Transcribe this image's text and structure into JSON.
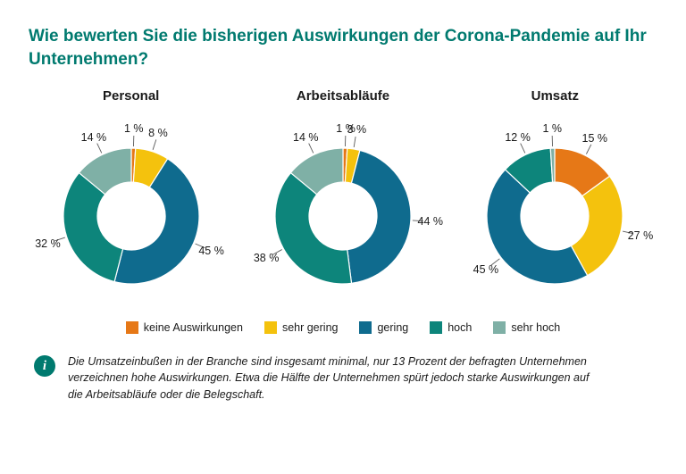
{
  "title": "Wie bewerten Sie die bisherigen Auswirkungen der Corona-Pandemie auf Ihr Unternehmen?",
  "chart": {
    "type": "donut",
    "background_color": "#ffffff",
    "title_color": "#007a6f",
    "title_fontsize": 19,
    "label_fontsize": 12.5,
    "chart_title_fontsize": 15,
    "inner_radius_ratio": 0.5,
    "start_angle_deg": 0,
    "series_colors": {
      "keine Auswirkungen": "#e67817",
      "sehr gering": "#f4c20d",
      "gering": "#0f6b8e",
      "hoch": "#0d857b",
      "sehr hoch": "#7fb0a6"
    },
    "panels": [
      {
        "title": "Personal",
        "slices": [
          {
            "label": "keine Auswirkungen",
            "value": 1
          },
          {
            "label": "sehr gering",
            "value": 8
          },
          {
            "label": "gering",
            "value": 45
          },
          {
            "label": "hoch",
            "value": 32
          },
          {
            "label": "sehr hoch",
            "value": 14
          }
        ]
      },
      {
        "title": "Arbeitsabläufe",
        "slices": [
          {
            "label": "keine Auswirkungen",
            "value": 1
          },
          {
            "label": "sehr gering",
            "value": 3
          },
          {
            "label": "gering",
            "value": 44
          },
          {
            "label": "hoch",
            "value": 38
          },
          {
            "label": "sehr hoch",
            "value": 14
          }
        ]
      },
      {
        "title": "Umsatz",
        "slices": [
          {
            "label": "keine Auswirkungen",
            "value": 15
          },
          {
            "label": "sehr gering",
            "value": 27
          },
          {
            "label": "gering",
            "value": 45
          },
          {
            "label": "hoch",
            "value": 12
          },
          {
            "label": "sehr hoch",
            "value": 1
          }
        ]
      }
    ]
  },
  "legend": [
    {
      "label": "keine Auswirkungen",
      "color": "#e67817"
    },
    {
      "label": "sehr gering",
      "color": "#f4c20d"
    },
    {
      "label": "gering",
      "color": "#0f6b8e"
    },
    {
      "label": "hoch",
      "color": "#0d857b"
    },
    {
      "label": "sehr hoch",
      "color": "#7fb0a6"
    }
  ],
  "footnote": "Die Umsatzeinbußen in der Branche sind insgesamt minimal, nur 13 Prozent der befragten Unternehmen verzeichnen hohe Auswirkungen. Etwa die Hälfte der Unternehmen spürt jedoch starke Auswirkungen auf die Arbeitsabläufe oder die Belegschaft.",
  "info_glyph": "i"
}
